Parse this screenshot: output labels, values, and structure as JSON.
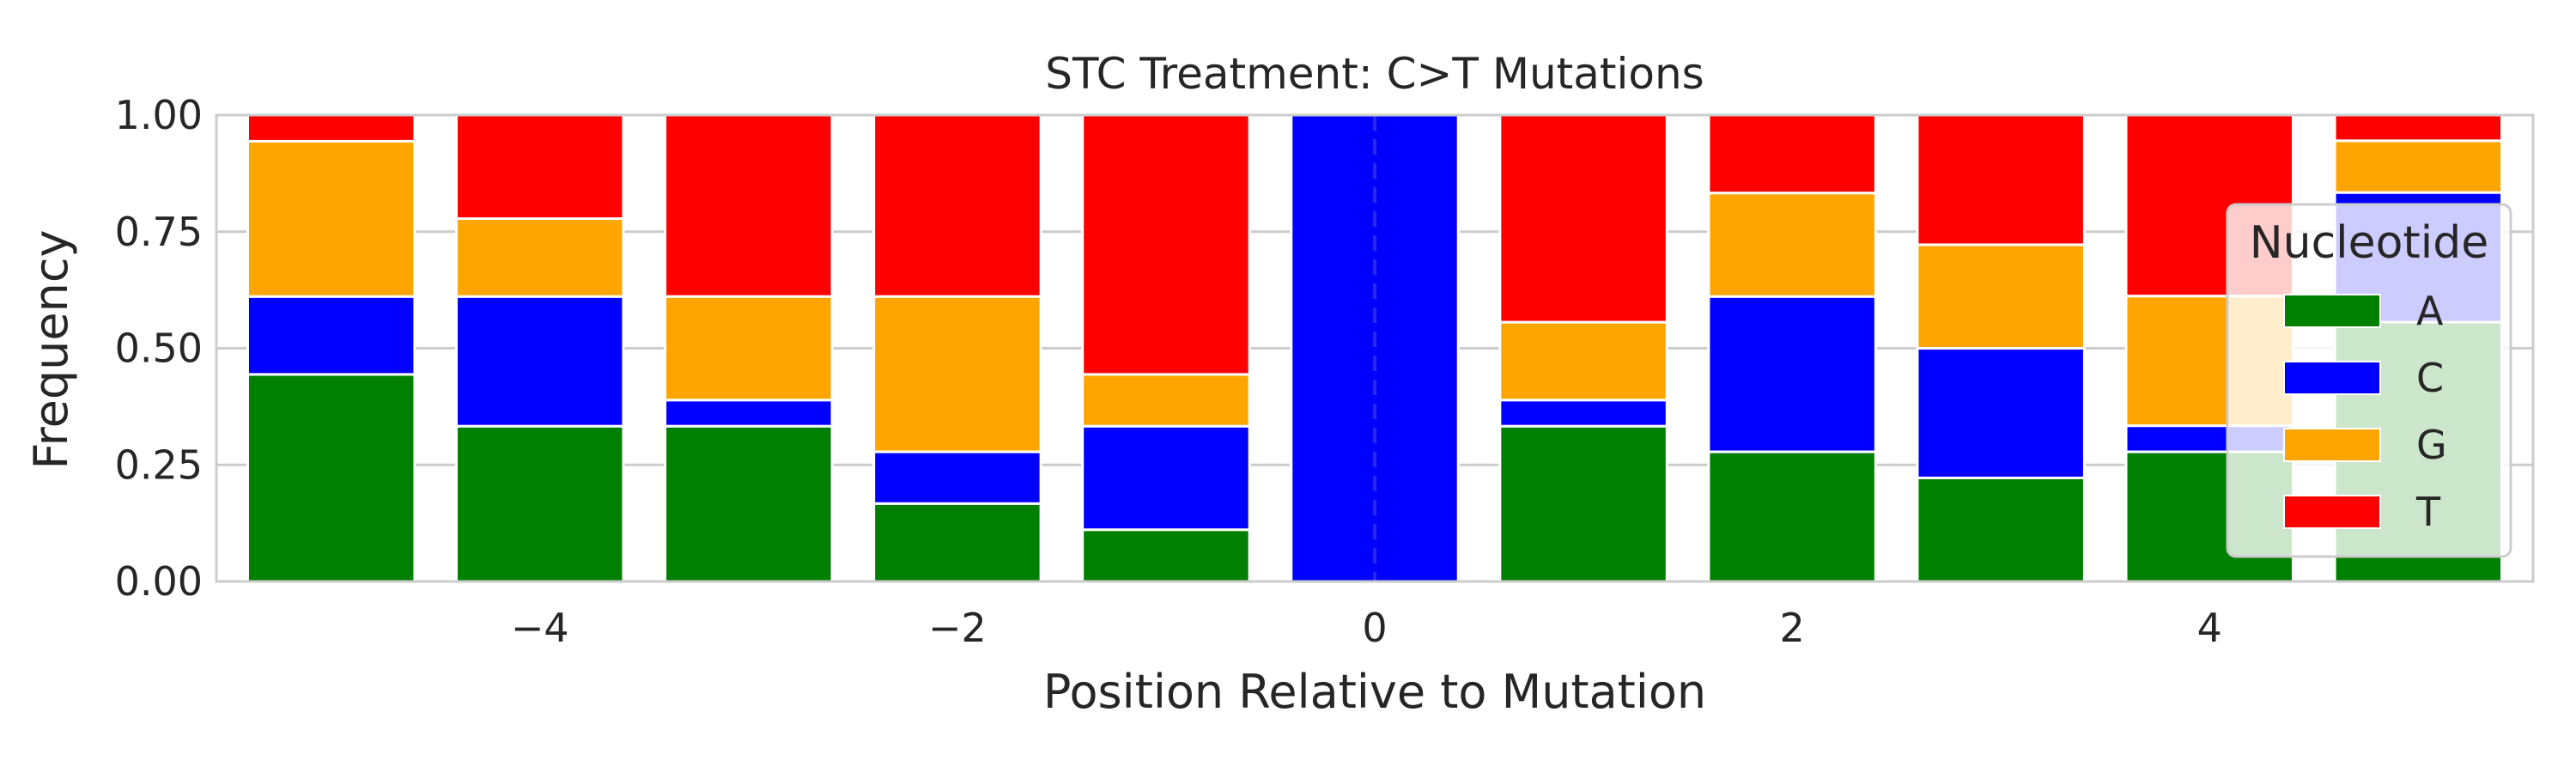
{
  "chart_data": {
    "type": "bar",
    "stacked": true,
    "title": "STC Treatment: C>T Mutations",
    "xlabel": "Position Relative to Mutation",
    "ylabel": "Frequency",
    "positions": [
      -5,
      -4,
      -3,
      -2,
      -1,
      0,
      1,
      2,
      3,
      4,
      5
    ],
    "xlim": [
      -5.55,
      5.55
    ],
    "ylim": [
      0,
      1
    ],
    "x_ticks": [
      -4,
      -2,
      0,
      2,
      4
    ],
    "x_tick_labels": [
      "−4",
      "−2",
      "0",
      "2",
      "4"
    ],
    "y_ticks": [
      0,
      0.25,
      0.5,
      0.75,
      1.0
    ],
    "y_tick_labels": [
      "0.00",
      "0.25",
      "0.50",
      "0.75",
      "1.00"
    ],
    "grid": "horizontal",
    "reference_line": {
      "x": 0,
      "style": "dashed"
    },
    "series": [
      {
        "name": "A",
        "color": "#008000",
        "values": [
          0.444,
          0.333,
          0.333,
          0.167,
          0.111,
          0.0,
          0.333,
          0.278,
          0.222,
          0.278,
          0.556
        ]
      },
      {
        "name": "C",
        "color": "#0000ff",
        "values": [
          0.167,
          0.278,
          0.056,
          0.111,
          0.222,
          1.0,
          0.056,
          0.333,
          0.278,
          0.056,
          0.278
        ]
      },
      {
        "name": "G",
        "color": "#ffa500",
        "values": [
          0.333,
          0.167,
          0.222,
          0.333,
          0.111,
          0.0,
          0.167,
          0.222,
          0.222,
          0.278,
          0.111
        ]
      },
      {
        "name": "T",
        "color": "#ff0000",
        "values": [
          0.056,
          0.222,
          0.389,
          0.389,
          0.556,
          0.0,
          0.444,
          0.167,
          0.278,
          0.389,
          0.056
        ]
      }
    ],
    "legend": {
      "title": "Nucleotide",
      "position": "right",
      "entries": [
        "A",
        "C",
        "G",
        "T"
      ]
    }
  }
}
